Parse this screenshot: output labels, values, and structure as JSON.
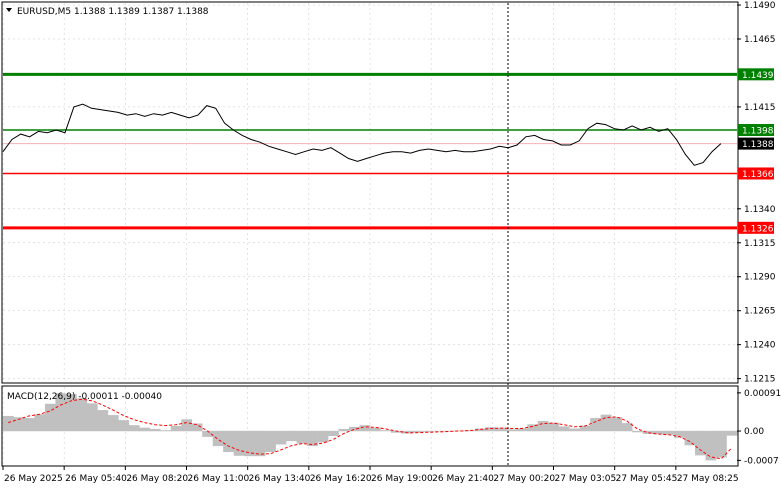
{
  "header": {
    "label": "EURUSD,M5  1.1388 1.1389 1.1387 1.1388",
    "menu_icon": "triangle-down-icon"
  },
  "macd_label": "MACD(12,26,9) -0.00011 -0.00040",
  "colors": {
    "price_line": "#000000",
    "resistance": "#008000",
    "support": "#ff0000",
    "current_price_label_bg": "#000000",
    "histogram": "#c0c0c0",
    "signal": "#ff0000",
    "grid": "#c8c8c8",
    "crosshair": "#000000"
  },
  "chart_data": [
    {
      "type": "line",
      "title": "EURUSD,M5",
      "ohlc_last": {
        "open": 1.1388,
        "high": 1.1389,
        "low": 1.1387,
        "close": 1.1388
      },
      "ylim": [
        1.12125,
        1.14915
      ],
      "y_ticks": [
        "1.1490",
        "1.1465",
        "1.1415",
        "1.1340",
        "1.1315",
        "1.1290",
        "1.1265",
        "1.1240",
        "1.1215"
      ],
      "x_ticks": [
        "26 May 2025",
        "26 May 05:40",
        "26 May 08:20",
        "26 May 11:00",
        "26 May 13:40",
        "26 May 16:20",
        "26 May 19:00",
        "26 May 21:40",
        "27 May 00:20",
        "27 May 03:05",
        "27 May 05:45",
        "27 May 08:25"
      ],
      "levels": [
        {
          "value": 1.1439,
          "label": "1.1439",
          "color": "#008000",
          "style": "thick"
        },
        {
          "value": 1.1398,
          "label": "1.1398",
          "color": "#008000",
          "style": "thin"
        },
        {
          "value": 1.1366,
          "label": "1.1366",
          "color": "#ff0000",
          "style": "thin"
        },
        {
          "value": 1.1326,
          "label": "1.1326",
          "color": "#ff0000",
          "style": "thick"
        }
      ],
      "current_price": {
        "value": 1.1388,
        "label": "1.1388"
      },
      "series": [
        {
          "values": [
            1.1382,
            1.1391,
            1.1395,
            1.1393,
            1.1397,
            1.1396,
            1.1398,
            1.1396,
            1.1415,
            1.1417,
            1.1414,
            1.1413,
            1.1412,
            1.1411,
            1.1409,
            1.141,
            1.1408,
            1.141,
            1.1409,
            1.1411,
            1.1409,
            1.1407,
            1.1409,
            1.1416,
            1.1414,
            1.1403,
            1.1398,
            1.1394,
            1.1391,
            1.1389,
            1.1386,
            1.1384,
            1.1382,
            1.138,
            1.1382,
            1.1384,
            1.1383,
            1.1385,
            1.1381,
            1.1377,
            1.1375,
            1.1377,
            1.1379,
            1.1381,
            1.1382,
            1.1382,
            1.1381,
            1.1383,
            1.1384,
            1.1383,
            1.1382,
            1.1383,
            1.1382,
            1.1382,
            1.1383,
            1.1384,
            1.1386,
            1.1385,
            1.1387,
            1.1393,
            1.1394,
            1.1391,
            1.139,
            1.1387,
            1.1387,
            1.139,
            1.1399,
            1.1403,
            1.1402,
            1.1399,
            1.1398,
            1.1401,
            1.1398,
            1.14,
            1.1397,
            1.1399,
            1.1391,
            1.138,
            1.1372,
            1.1374,
            1.1382,
            1.1388
          ]
        }
      ]
    },
    {
      "type": "bar",
      "title": "MACD(12,26,9)",
      "main": -0.00011,
      "signal": -0.0004,
      "ylim": [
        -0.00081,
        0.00105
      ],
      "y_ticks": [
        "0.00091",
        "0.00",
        "-0.0007"
      ],
      "series": [
        {
          "name": "MACD",
          "values": [
            0.00036,
            0.00033,
            0.00031,
            0.0004,
            0.00065,
            0.0009,
            0.00088,
            0.00078,
            0.00066,
            0.0005,
            0.00038,
            0.00026,
            0.00014,
            8e-05,
            5e-05,
            2e-05,
            0.00012,
            0.00028,
            0.00018,
            -0.00014,
            -0.00036,
            -0.0005,
            -0.00059,
            -0.0006,
            -0.0006,
            -0.0005,
            -0.00032,
            -0.00024,
            -0.0003,
            -0.00036,
            -0.00027,
            -0.00012,
            5e-05,
            0.0001,
            0.00014,
            8e-05,
            2e-05,
            -4e-05,
            -6e-05,
            -4e-05,
            -2e-05,
            -1e-05,
            -1e-05,
            1e-05,
            2e-05,
            6e-05,
            9e-05,
            8e-05,
            4e-05,
            6e-05,
            0.00016,
            0.00024,
            0.0002,
            0.00011,
            6e-05,
            0.00013,
            0.00031,
            0.00039,
            0.00033,
            0.00019,
            -3e-05,
            -7e-05,
            -8e-05,
            -9e-05,
            -0.00016,
            -0.00034,
            -0.00058,
            -0.0007,
            -0.00063,
            -0.00011
          ],
          "color": "#c0c0c0"
        },
        {
          "name": "Signal",
          "values": [
            0.0002,
            0.00028,
            0.00036,
            0.0004,
            0.00048,
            0.00062,
            0.00072,
            0.00076,
            0.00072,
            0.00062,
            0.0005,
            0.00037,
            0.00027,
            0.0002,
            0.00015,
            0.00013,
            0.00015,
            0.0002,
            0.00015,
            0.0,
            -0.0002,
            -0.00036,
            -0.00046,
            -0.00052,
            -0.00055,
            -0.00054,
            -0.00045,
            -0.00035,
            -0.0003,
            -0.00032,
            -0.00029,
            -0.0002,
            -6e-05,
            4e-05,
            0.0001,
            9e-05,
            5e-05,
            0.0,
            -4e-05,
            -4e-05,
            -3e-05,
            -2e-05,
            -1e-05,
            0.0,
            1e-05,
            4e-05,
            6e-05,
            7e-05,
            6e-05,
            6e-05,
            0.00011,
            0.00018,
            0.00019,
            0.00015,
            0.0001,
            0.00012,
            0.00022,
            0.00032,
            0.00034,
            0.00024,
            5e-05,
            -4e-05,
            -7e-05,
            -9e-05,
            -0.00013,
            -0.00025,
            -0.00045,
            -0.00062,
            -0.00066,
            -0.0004
          ],
          "color": "#ff0000",
          "style": "dashed"
        }
      ]
    }
  ]
}
